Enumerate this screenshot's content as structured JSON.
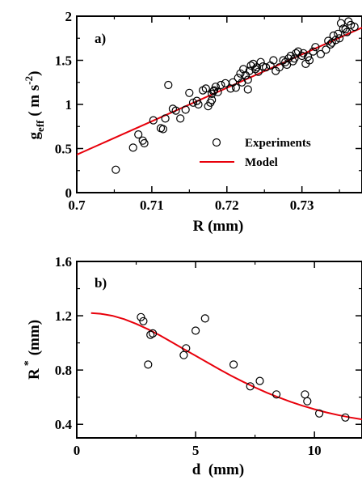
{
  "chart_data": [
    {
      "type": "scatter",
      "panel_label": "a)",
      "xlabel": "R (mm)",
      "ylabel_main": "g",
      "ylabel_sub": "eff",
      "ylabel_unit_open": " ( m s",
      "ylabel_unit_sup": "-2",
      "ylabel_unit_close": ")",
      "xlim": [
        0.7,
        0.738
      ],
      "ylim": [
        0,
        2
      ],
      "xticks": [
        {
          "value": 0.7,
          "label": "0.7"
        },
        {
          "value": 0.71,
          "label": "0.71"
        },
        {
          "value": 0.72,
          "label": "0.72"
        },
        {
          "value": 0.73,
          "label": "0.73"
        }
      ],
      "yticks": [
        {
          "value": 0,
          "label": "0"
        },
        {
          "value": 0.5,
          "label": "0.5"
        },
        {
          "value": 1,
          "label": "1"
        },
        {
          "value": 1.5,
          "label": "1.5"
        },
        {
          "value": 2,
          "label": "2"
        }
      ],
      "legend": {
        "position": "bottom-right",
        "entries": [
          "Experiments",
          "Model"
        ]
      },
      "series": [
        {
          "name": "Experiments",
          "marker": "open-circle",
          "x": [
            0.7052,
            0.7075,
            0.7082,
            0.7088,
            0.709,
            0.7102,
            0.7112,
            0.7115,
            0.7118,
            0.7122,
            0.7128,
            0.7132,
            0.7138,
            0.7145,
            0.715,
            0.7155,
            0.716,
            0.7162,
            0.7168,
            0.7172,
            0.7175,
            0.7178,
            0.718,
            0.718,
            0.7182,
            0.7183,
            0.7185,
            0.7188,
            0.7192,
            0.7198,
            0.7205,
            0.7208,
            0.7212,
            0.7215,
            0.7218,
            0.722,
            0.7222,
            0.7225,
            0.7228,
            0.7228,
            0.723,
            0.7232,
            0.7235,
            0.7238,
            0.724,
            0.7242,
            0.7245,
            0.7248,
            0.7252,
            0.7258,
            0.7262,
            0.7265,
            0.727,
            0.7275,
            0.7278,
            0.728,
            0.7282,
            0.7285,
            0.7288,
            0.729,
            0.7292,
            0.7295,
            0.73,
            0.7302,
            0.7305,
            0.7308,
            0.731,
            0.7315,
            0.7318,
            0.7325,
            0.7332,
            0.7335,
            0.7338,
            0.734,
            0.7342,
            0.7345,
            0.7348,
            0.735,
            0.7352,
            0.7355,
            0.7358,
            0.736,
            0.7362,
            0.7365,
            0.737
          ],
          "y": [
            0.26,
            0.51,
            0.66,
            0.59,
            0.56,
            0.82,
            0.73,
            0.72,
            0.84,
            1.22,
            0.95,
            0.93,
            0.84,
            0.94,
            1.13,
            1.02,
            1.04,
            1.0,
            1.16,
            1.18,
            0.98,
            1.02,
            1.05,
            1.12,
            1.15,
            1.16,
            1.2,
            1.14,
            1.22,
            1.24,
            1.18,
            1.25,
            1.19,
            1.3,
            1.35,
            1.25,
            1.4,
            1.33,
            1.17,
            1.28,
            1.38,
            1.44,
            1.46,
            1.4,
            1.42,
            1.37,
            1.48,
            1.43,
            1.42,
            1.44,
            1.5,
            1.38,
            1.42,
            1.5,
            1.48,
            1.45,
            1.52,
            1.55,
            1.49,
            1.52,
            1.58,
            1.6,
            1.55,
            1.58,
            1.46,
            1.54,
            1.5,
            1.6,
            1.65,
            1.57,
            1.62,
            1.72,
            1.68,
            1.7,
            1.78,
            1.73,
            1.8,
            1.75,
            1.92,
            1.86,
            1.85,
            1.82,
            1.94,
            1.9,
            1.88
          ]
        },
        {
          "name": "Model",
          "line": true,
          "color": "#e8000b",
          "x": [
            0.7,
            0.738
          ],
          "y": [
            0.43,
            1.87
          ]
        }
      ]
    },
    {
      "type": "scatter",
      "panel_label": "b)",
      "xlabel": "d  (mm)",
      "ylabel_main": "R",
      "ylabel_sup": "*",
      "ylabel_unit": "(mm)",
      "xlim": [
        0,
        12
      ],
      "ylim": [
        0.3,
        1.6
      ],
      "xticks": [
        {
          "value": 0,
          "label": "0"
        },
        {
          "value": 5,
          "label": "5"
        },
        {
          "value": 10,
          "label": "10"
        }
      ],
      "yticks": [
        {
          "value": 0.4,
          "label": "0.4"
        },
        {
          "value": 0.8,
          "label": "0.8"
        },
        {
          "value": 1.2,
          "label": "1.2"
        },
        {
          "value": 1.6,
          "label": "1.6"
        }
      ],
      "series": [
        {
          "marker": "open-circle",
          "x": [
            2.7,
            2.8,
            3.0,
            3.1,
            3.2,
            4.5,
            4.6,
            5.0,
            5.4,
            6.6,
            7.3,
            7.7,
            8.4,
            9.6,
            9.7,
            10.2,
            11.3
          ],
          "y": [
            1.19,
            1.16,
            0.84,
            1.06,
            1.07,
            0.91,
            0.96,
            1.09,
            1.18,
            0.84,
            0.68,
            0.72,
            0.62,
            0.62,
            0.57,
            0.48,
            0.45
          ]
        },
        {
          "line": true,
          "color": "#e8000b",
          "x": [
            0.6,
            1.0,
            1.5,
            2.0,
            2.5,
            3.0,
            3.5,
            4.0,
            4.5,
            5.0,
            5.5,
            6.0,
            6.5,
            7.0,
            7.5,
            8.0,
            8.5,
            9.0,
            9.5,
            10.0,
            10.5,
            11.0,
            11.5,
            12.0
          ],
          "y": [
            1.22,
            1.215,
            1.2,
            1.175,
            1.14,
            1.1,
            1.055,
            1.005,
            0.955,
            0.905,
            0.855,
            0.805,
            0.758,
            0.713,
            0.672,
            0.633,
            0.598,
            0.566,
            0.537,
            0.511,
            0.488,
            0.468,
            0.451,
            0.436
          ]
        }
      ]
    }
  ]
}
